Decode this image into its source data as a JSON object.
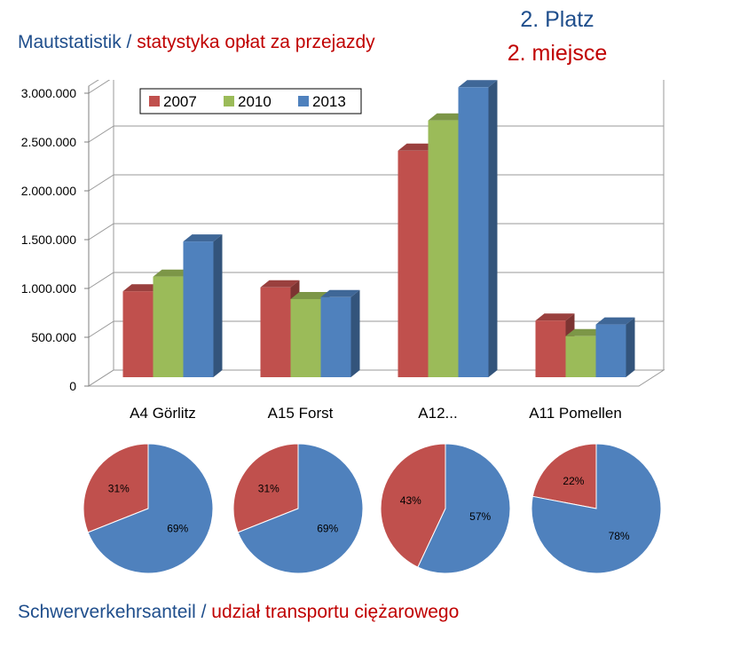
{
  "header": {
    "title_de": "Mautstatistik",
    "separator": " / ",
    "title_pl": "statystyka opłat za przejazdy",
    "rank_de": "2. Platz",
    "rank_pl": "2. miejsce"
  },
  "footer": {
    "label_de": "Schwerverkehrsanteil",
    "separator": " / ",
    "label_pl": "udział transportu ciężarowego"
  },
  "colors": {
    "2007": "#c0504d",
    "2010": "#9bbb59",
    "2013": "#4f81bd",
    "pie_heavy": "#c0504d",
    "pie_other": "#4f81bd",
    "text_blue": "#1f4e8c",
    "text_red": "#c00000"
  },
  "chart_data": [
    {
      "type": "bar",
      "title": "",
      "categories": [
        "A4 Görlitz",
        "A15 Forst",
        "A12...",
        "A11 Pomellen"
      ],
      "series": [
        {
          "name": "2007",
          "values": [
            880000,
            920000,
            2320000,
            580000
          ]
        },
        {
          "name": "2010",
          "values": [
            1030000,
            800000,
            2630000,
            420000
          ]
        },
        {
          "name": "2013",
          "values": [
            1390000,
            820000,
            2970000,
            540000
          ]
        }
      ],
      "ylim": [
        0,
        3000000
      ],
      "yticks": [
        0,
        500000,
        1000000,
        1500000,
        2000000,
        2500000,
        3000000
      ],
      "ytick_labels": [
        "0",
        "500.000",
        "1.000.000",
        "1.500.000",
        "2.000.000",
        "2.500.000",
        "3.000.000"
      ],
      "xlabel": "",
      "ylabel": "",
      "grid": true,
      "legend": "top-left inside plot"
    },
    {
      "type": "pie",
      "charts": [
        {
          "category": "A4 Görlitz",
          "slices": [
            {
              "label": "31%",
              "value": 31
            },
            {
              "label": "69%",
              "value": 69
            }
          ]
        },
        {
          "category": "A15 Forst",
          "slices": [
            {
              "label": "31%",
              "value": 31
            },
            {
              "label": "69%",
              "value": 69
            }
          ]
        },
        {
          "category": "A12...",
          "slices": [
            {
              "label": "43%",
              "value": 43
            },
            {
              "label": "57%",
              "value": 57
            }
          ]
        },
        {
          "category": "A11 Pomellen",
          "slices": [
            {
              "label": "22%",
              "value": 22
            },
            {
              "label": "78%",
              "value": 78
            }
          ]
        }
      ]
    }
  ]
}
